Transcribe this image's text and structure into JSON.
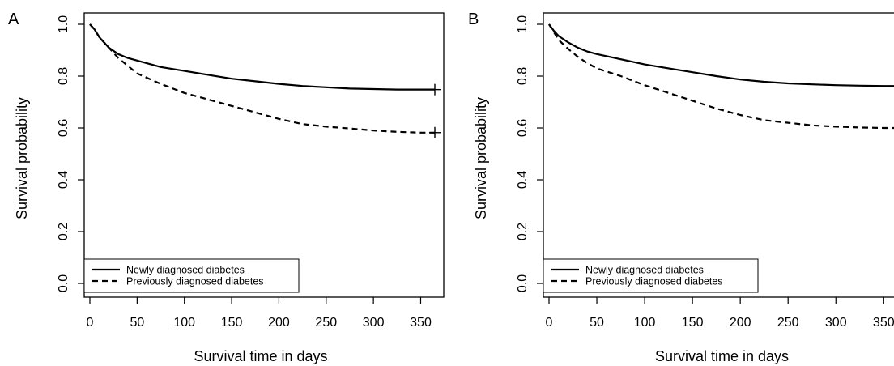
{
  "chart_data": [
    {
      "type": "line",
      "panel_label": "A",
      "xlabel": "Survival time in days",
      "ylabel": "Survival probability",
      "xlim": [
        0,
        365
      ],
      "ylim": [
        0,
        1
      ],
      "x_ticks": [
        0,
        50,
        100,
        150,
        200,
        250,
        300,
        350
      ],
      "y_ticks": [
        "0.0",
        "0.2",
        "0.4",
        "0.6",
        "0.8",
        "1.0"
      ],
      "grid": false,
      "legend_position": "bottom-left",
      "series": [
        {
          "name": "Newly diagnosed diabetes",
          "style": "solid",
          "x": [
            0,
            5,
            10,
            20,
            30,
            40,
            50,
            75,
            100,
            125,
            150,
            175,
            200,
            225,
            250,
            275,
            300,
            325,
            350,
            365
          ],
          "y": [
            1.0,
            0.98,
            0.95,
            0.91,
            0.885,
            0.87,
            0.86,
            0.835,
            0.82,
            0.805,
            0.79,
            0.78,
            0.77,
            0.762,
            0.757,
            0.752,
            0.75,
            0.748,
            0.748,
            0.748
          ]
        },
        {
          "name": "Previously diagnosed diabetes",
          "style": "dashed",
          "x": [
            0,
            5,
            10,
            20,
            30,
            40,
            50,
            75,
            100,
            125,
            150,
            175,
            200,
            225,
            250,
            275,
            300,
            325,
            350,
            365
          ],
          "y": [
            1.0,
            0.98,
            0.95,
            0.91,
            0.87,
            0.84,
            0.81,
            0.77,
            0.735,
            0.71,
            0.685,
            0.66,
            0.635,
            0.615,
            0.605,
            0.598,
            0.59,
            0.585,
            0.582,
            0.582
          ]
        }
      ]
    },
    {
      "type": "line",
      "panel_label": "B",
      "xlabel": "Survival time in days",
      "ylabel": "Survival probability",
      "xlim": [
        0,
        365
      ],
      "ylim": [
        0,
        1
      ],
      "x_ticks": [
        0,
        50,
        100,
        150,
        200,
        250,
        300,
        350
      ],
      "y_ticks": [
        "0.0",
        "0.2",
        "0.4",
        "0.6",
        "0.8",
        "1.0"
      ],
      "grid": false,
      "legend_position": "bottom-left",
      "series": [
        {
          "name": "Newly diagnosed diabetes",
          "style": "solid",
          "x": [
            0,
            5,
            10,
            20,
            30,
            40,
            50,
            75,
            100,
            125,
            150,
            175,
            200,
            225,
            250,
            275,
            300,
            325,
            350,
            365
          ],
          "y": [
            1.0,
            0.975,
            0.955,
            0.93,
            0.91,
            0.895,
            0.885,
            0.865,
            0.845,
            0.83,
            0.815,
            0.8,
            0.787,
            0.778,
            0.772,
            0.768,
            0.765,
            0.763,
            0.762,
            0.762
          ]
        },
        {
          "name": "Previously diagnosed diabetes",
          "style": "dashed",
          "x": [
            0,
            5,
            10,
            20,
            30,
            40,
            50,
            75,
            100,
            125,
            150,
            175,
            200,
            225,
            250,
            275,
            300,
            325,
            350,
            365
          ],
          "y": [
            1.0,
            0.97,
            0.94,
            0.905,
            0.875,
            0.85,
            0.83,
            0.8,
            0.765,
            0.735,
            0.705,
            0.675,
            0.65,
            0.63,
            0.62,
            0.61,
            0.605,
            0.602,
            0.6,
            0.6
          ]
        }
      ]
    }
  ]
}
